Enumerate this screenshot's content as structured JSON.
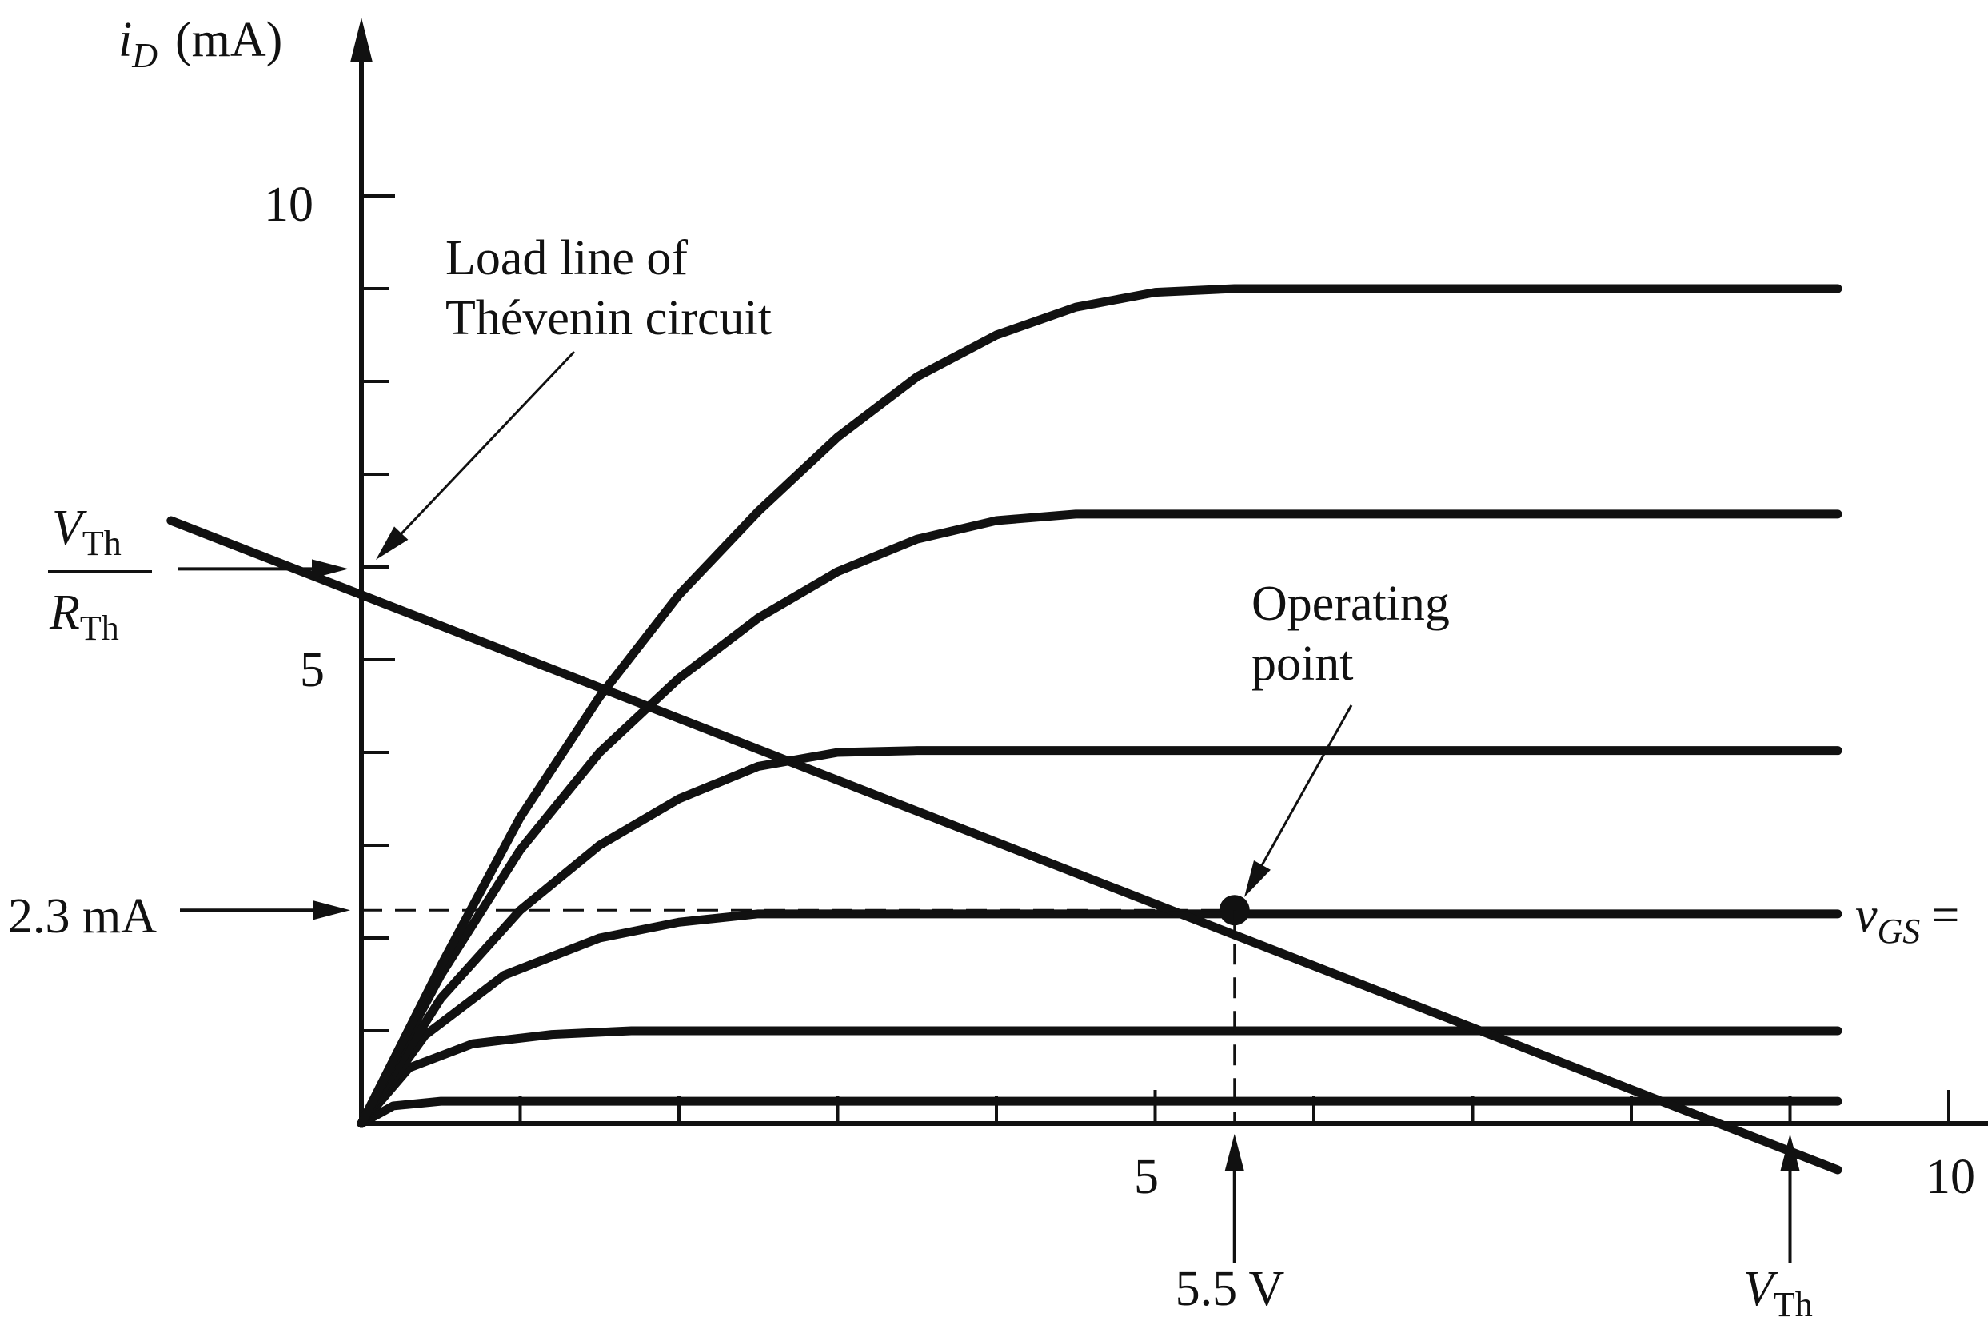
{
  "chart_data": {
    "type": "line",
    "ylabel": {
      "var": "i",
      "sub": "D",
      "unit": "(mA)"
    },
    "xlim": [
      0,
      10
    ],
    "ylim": [
      0,
      10
    ],
    "x_ticks": [
      1,
      2,
      3,
      4,
      5,
      6,
      7,
      8,
      9,
      10
    ],
    "x_tick_labels": [
      {
        "value": 5,
        "text": "5"
      },
      {
        "value": 10,
        "text": "10"
      }
    ],
    "y_ticks": [
      1,
      2,
      3,
      4,
      5,
      6,
      7,
      8,
      9,
      10
    ],
    "y_tick_labels": [
      {
        "value": 5,
        "text": "5"
      },
      {
        "value": 10,
        "text": "10"
      }
    ],
    "series": [
      {
        "points": [
          [
            0,
            0
          ],
          [
            0.2,
            0.19
          ],
          [
            0.5,
            0.24
          ],
          [
            1,
            0.24
          ],
          [
            2,
            0.24
          ],
          [
            3,
            0.24
          ],
          [
            4,
            0.24
          ],
          [
            5,
            0.24
          ],
          [
            6,
            0.24
          ],
          [
            7,
            0.24
          ],
          [
            8,
            0.24
          ],
          [
            9.3,
            0.24
          ]
        ]
      },
      {
        "points": [
          [
            0,
            0
          ],
          [
            0.3,
            0.6
          ],
          [
            0.7,
            0.86
          ],
          [
            1.2,
            0.96
          ],
          [
            1.7,
            1.0
          ],
          [
            3,
            1.0
          ],
          [
            5,
            1.0
          ],
          [
            7,
            1.0
          ],
          [
            9.3,
            1.0
          ]
        ]
      },
      {
        "points": [
          [
            0,
            0
          ],
          [
            0.4,
            0.95
          ],
          [
            0.9,
            1.6
          ],
          [
            1.5,
            2.0
          ],
          [
            2.0,
            2.17
          ],
          [
            2.5,
            2.26
          ],
          [
            3,
            2.26
          ],
          [
            5,
            2.26
          ],
          [
            7,
            2.26
          ],
          [
            9.3,
            2.26
          ]
        ]
      },
      {
        "points": [
          [
            0,
            0
          ],
          [
            0.5,
            1.35
          ],
          [
            1.0,
            2.3
          ],
          [
            1.5,
            3.0
          ],
          [
            2.0,
            3.5
          ],
          [
            2.5,
            3.85
          ],
          [
            3.0,
            4.0
          ],
          [
            3.5,
            4.02
          ],
          [
            5,
            4.02
          ],
          [
            7,
            4.02
          ],
          [
            9.3,
            4.02
          ]
        ]
      },
      {
        "points": [
          [
            0,
            0
          ],
          [
            0.5,
            1.6
          ],
          [
            1.0,
            2.95
          ],
          [
            1.5,
            4.0
          ],
          [
            2.0,
            4.8
          ],
          [
            2.5,
            5.45
          ],
          [
            3.0,
            5.95
          ],
          [
            3.5,
            6.3
          ],
          [
            4.0,
            6.5
          ],
          [
            4.5,
            6.57
          ],
          [
            5,
            6.57
          ],
          [
            7,
            6.57
          ],
          [
            9.3,
            6.57
          ]
        ]
      },
      {
        "points": [
          [
            0,
            0
          ],
          [
            0.5,
            1.7
          ],
          [
            1.0,
            3.3
          ],
          [
            1.5,
            4.6
          ],
          [
            2.0,
            5.7
          ],
          [
            2.5,
            6.6
          ],
          [
            3.0,
            7.4
          ],
          [
            3.5,
            8.05
          ],
          [
            4.0,
            8.5
          ],
          [
            4.5,
            8.8
          ],
          [
            5.0,
            8.96
          ],
          [
            5.5,
            9.0
          ],
          [
            7,
            9.0
          ],
          [
            9.3,
            9.0
          ]
        ]
      }
    ],
    "load_line": {
      "x": [
        -1.2,
        9.3
      ],
      "y": [
        6.5,
        -0.5
      ]
    },
    "vth_over_rth": 5.98,
    "v_th": 9.0,
    "operating_point": {
      "x": 5.5,
      "y": 2.3
    },
    "annotations": {
      "load_line_line1": "Load line of",
      "load_line_line2": "Thévenin circuit",
      "operating_point_line1": "Operating",
      "operating_point_line2": "point",
      "current_label": "2.3 mA",
      "voltage_label": "5.5 V",
      "vth_sym": "V",
      "vth_sub": "Th",
      "rth_sym": "R",
      "rth_sub": "Th",
      "vgs_sym": "v",
      "vgs_sub": "GS",
      "vgs_eq": "="
    }
  }
}
